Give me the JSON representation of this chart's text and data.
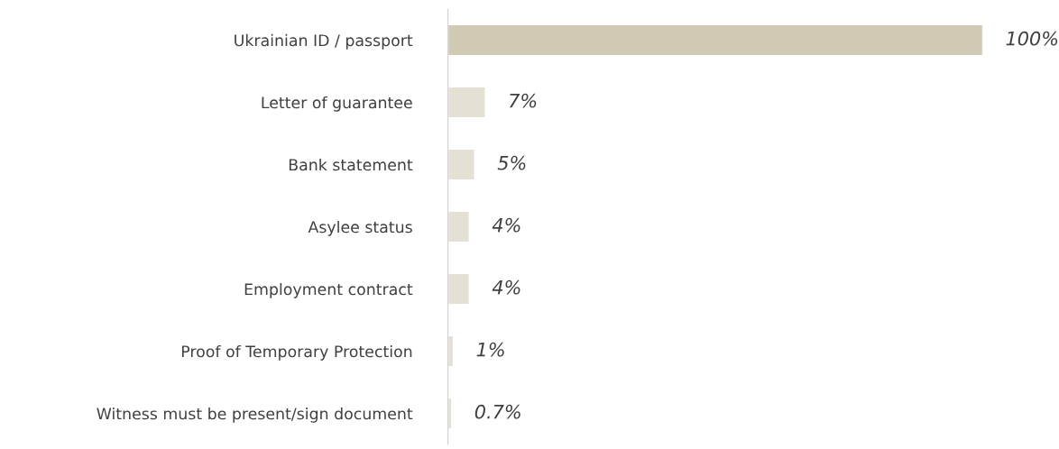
{
  "chart_data": {
    "type": "bar",
    "orientation": "horizontal",
    "categories": [
      "Ukrainian ID / passport",
      "Letter of guarantee",
      "Bank statement",
      "Asylee status",
      "Employment contract",
      "Proof of Temporary Protection",
      "Witness must be present/sign document"
    ],
    "values": [
      100,
      7,
      5,
      4,
      4,
      1,
      0.7
    ],
    "colors": [
      "#d0c9b4",
      "#e4e0d4",
      "#e4e0d4",
      "#e4e0d4",
      "#e4e0d4",
      "#e4e0d4",
      "#e4e0d4"
    ],
    "value_labels": [
      "100%",
      "7%",
      "5%",
      "4%",
      "4%",
      "1%",
      "0.7%"
    ],
    "grid": false,
    "legend": false
  }
}
